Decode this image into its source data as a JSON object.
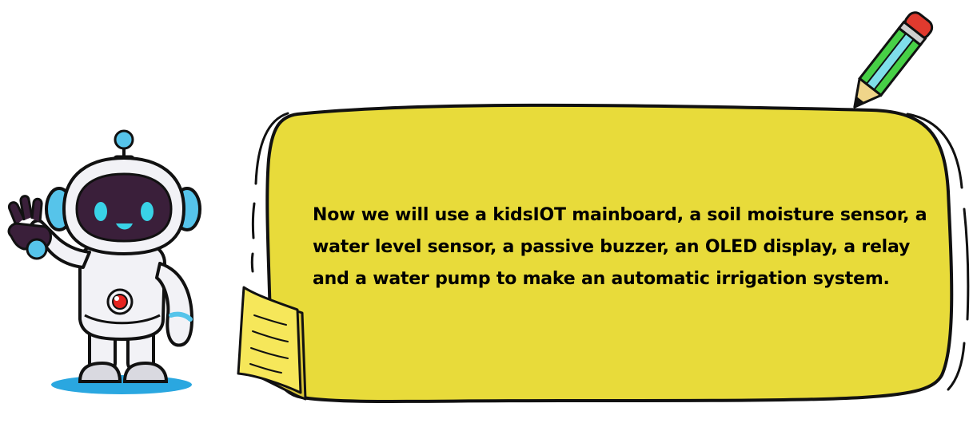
{
  "message": {
    "lines": [
      "Now we will use a kidsIOT mainboard, a soil moisture sensor, a",
      "water level sensor, a passive buzzer, an OLED display, a relay",
      "and a water pump to make an automatic irrigation system."
    ]
  },
  "colors": {
    "bubble_fill": "#e8db3a",
    "outline": "#111111",
    "robot_body": "#f2f2f6",
    "robot_face": "#3a1f3a",
    "robot_eyes": "#39d2e6",
    "robot_accent": "#56c4ea",
    "robot_chest_button": "#e52420",
    "robot_shadow": "#2aa7e0",
    "note_fill": "#f6e75a",
    "pencil_body": "#47d046",
    "pencil_stripe": "#7fdfea",
    "pencil_eraser": "#e03a2e",
    "pencil_tip": "#f0d58a"
  },
  "icons": [
    "robot-mascot",
    "speech-bubble",
    "pencil-icon",
    "sticky-note-icon"
  ]
}
